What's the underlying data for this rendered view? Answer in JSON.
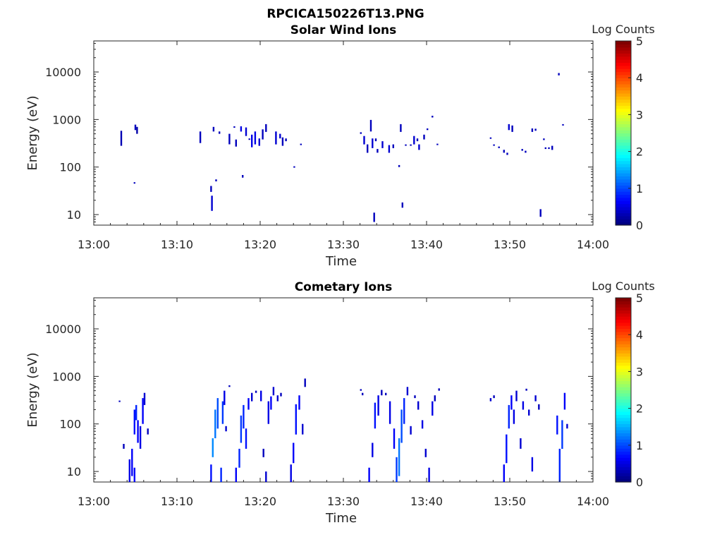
{
  "figure_title": "RPCICA150226T13.PNG",
  "chart_data": [
    {
      "type": "heatmap",
      "title": "Solar Wind Ions",
      "xlabel": "Time",
      "ylabel": "Energy (eV)",
      "yscale": "log",
      "ylim": [
        6,
        45000
      ],
      "xlim": [
        "13:00",
        "14:00"
      ],
      "xticks": [
        "13:00",
        "13:10",
        "13:20",
        "13:30",
        "13:40",
        "13:50",
        "14:00"
      ],
      "yticks": [
        "10",
        "100",
        "1000",
        "10000"
      ],
      "colorbar": {
        "label": "Log Counts",
        "range": [
          0,
          5
        ],
        "ticks": [
          "0",
          "1",
          "2",
          "3",
          "4",
          "5"
        ]
      },
      "cells": [
        [
          3.2,
          280,
          580,
          0.25
        ],
        [
          4.8,
          45,
          48,
          0.3
        ],
        [
          4.9,
          600,
          780,
          0.3
        ],
        [
          5.1,
          500,
          700,
          0.2
        ],
        [
          12.7,
          320,
          560,
          0.3
        ],
        [
          14.0,
          30,
          40,
          0.3
        ],
        [
          14.1,
          12,
          25,
          0.4
        ],
        [
          14.6,
          50,
          55,
          0.3
        ],
        [
          14.3,
          560,
          700,
          0.3
        ],
        [
          15.0,
          500,
          560,
          0.3
        ],
        [
          16.2,
          300,
          500,
          0.3
        ],
        [
          16.8,
          680,
          720,
          0.3
        ],
        [
          17.0,
          270,
          380,
          0.3
        ],
        [
          17.6,
          560,
          720,
          0.5
        ],
        [
          17.8,
          60,
          68,
          0.3
        ],
        [
          18.2,
          450,
          680,
          0.4
        ],
        [
          18.6,
          380,
          400,
          0.3
        ],
        [
          18.9,
          260,
          480,
          0.5
        ],
        [
          19.3,
          300,
          560,
          0.5
        ],
        [
          19.8,
          280,
          400,
          0.4
        ],
        [
          20.2,
          380,
          620,
          0.3
        ],
        [
          20.6,
          550,
          800,
          0.3
        ],
        [
          21.8,
          300,
          560,
          0.4
        ],
        [
          22.3,
          400,
          500,
          0.4
        ],
        [
          22.6,
          280,
          420,
          0.3
        ],
        [
          23.0,
          350,
          400,
          0.3
        ],
        [
          24.0,
          98,
          104,
          0.3
        ],
        [
          24.8,
          290,
          310,
          0.3
        ],
        [
          32.0,
          500,
          540,
          0.3
        ],
        [
          32.4,
          300,
          450,
          0.4
        ],
        [
          32.8,
          200,
          300,
          0.3
        ],
        [
          33.2,
          560,
          980,
          0.3
        ],
        [
          33.4,
          250,
          400,
          0.4
        ],
        [
          33.6,
          7,
          11,
          0.3
        ],
        [
          33.8,
          350,
          400,
          0.3
        ],
        [
          34.0,
          200,
          240,
          0.3
        ],
        [
          34.6,
          250,
          350,
          0.4
        ],
        [
          35.4,
          200,
          290,
          0.4
        ],
        [
          35.9,
          250,
          300,
          0.3
        ],
        [
          36.6,
          100,
          110,
          0.3
        ],
        [
          36.8,
          550,
          800,
          0.3
        ],
        [
          37.0,
          14,
          18,
          0.3
        ],
        [
          37.4,
          280,
          300,
          0.3
        ],
        [
          38.0,
          280,
          300,
          0.3
        ],
        [
          38.4,
          300,
          450,
          0.4
        ],
        [
          38.8,
          350,
          400,
          0.3
        ],
        [
          39.0,
          230,
          300,
          0.4
        ],
        [
          39.6,
          380,
          480,
          0.3
        ],
        [
          40.0,
          600,
          650,
          0.3
        ],
        [
          40.6,
          1100,
          1200,
          0.3
        ],
        [
          41.2,
          290,
          310,
          0.3
        ],
        [
          47.6,
          400,
          420,
          0.3
        ],
        [
          48.0,
          280,
          300,
          0.3
        ],
        [
          48.6,
          250,
          270,
          0.3
        ],
        [
          49.2,
          200,
          230,
          0.3
        ],
        [
          49.6,
          180,
          200,
          0.3
        ],
        [
          49.8,
          600,
          800,
          0.4
        ],
        [
          50.2,
          550,
          750,
          0.3
        ],
        [
          51.4,
          220,
          240,
          0.3
        ],
        [
          51.8,
          200,
          220,
          0.3
        ],
        [
          52.6,
          550,
          650,
          0.3
        ],
        [
          53.0,
          580,
          640,
          0.3
        ],
        [
          53.6,
          9,
          13,
          0.3
        ],
        [
          54.0,
          370,
          400,
          0.3
        ],
        [
          54.2,
          240,
          260,
          0.3
        ],
        [
          54.6,
          240,
          260,
          0.3
        ],
        [
          55.0,
          230,
          280,
          0.3
        ],
        [
          55.8,
          8500,
          9500,
          0.3
        ],
        [
          56.3,
          750,
          800,
          0.3
        ]
      ]
    },
    {
      "type": "heatmap",
      "title": "Cometary Ions",
      "xlabel": "Time",
      "ylabel": "Energy (eV)",
      "yscale": "log",
      "ylim": [
        6,
        45000
      ],
      "xlim": [
        "13:00",
        "14:00"
      ],
      "xticks": [
        "13:00",
        "13:10",
        "13:20",
        "13:30",
        "13:40",
        "13:50",
        "14:00"
      ],
      "yticks": [
        "10",
        "100",
        "1000",
        "10000"
      ],
      "colorbar": {
        "label": "Log Counts",
        "range": [
          0,
          5
        ],
        "ticks": [
          "0",
          "1",
          "2",
          "3",
          "4",
          "5"
        ]
      },
      "cells": [
        [
          3.0,
          290,
          310,
          0.3
        ],
        [
          3.5,
          30,
          38,
          0.3
        ],
        [
          4.2,
          6,
          18,
          0.5
        ],
        [
          4.5,
          8,
          30,
          0.6
        ],
        [
          4.8,
          60,
          200,
          0.7
        ],
        [
          5.0,
          120,
          250,
          0.8
        ],
        [
          5.2,
          40,
          120,
          0.6
        ],
        [
          5.5,
          30,
          90,
          0.5
        ],
        [
          5.8,
          100,
          350,
          0.6
        ],
        [
          6.0,
          250,
          450,
          0.4
        ],
        [
          6.4,
          60,
          80,
          0.3
        ],
        [
          4.8,
          6,
          12,
          0.6
        ],
        [
          14.0,
          6,
          14,
          0.7
        ],
        [
          14.2,
          20,
          50,
          1.3
        ],
        [
          14.5,
          50,
          200,
          1.2
        ],
        [
          14.8,
          80,
          350,
          1.0
        ],
        [
          15.2,
          6,
          12,
          0.8
        ],
        [
          15.4,
          100,
          300,
          0.9
        ],
        [
          15.6,
          250,
          500,
          0.5
        ],
        [
          15.8,
          70,
          90,
          0.4
        ],
        [
          16.2,
          600,
          650,
          0.3
        ],
        [
          17.0,
          6,
          12,
          0.6
        ],
        [
          17.4,
          12,
          30,
          0.8
        ],
        [
          17.6,
          40,
          150,
          0.9
        ],
        [
          17.9,
          80,
          250,
          0.8
        ],
        [
          18.2,
          30,
          80,
          0.7
        ],
        [
          18.5,
          200,
          350,
          0.6
        ],
        [
          18.9,
          300,
          450,
          0.4
        ],
        [
          19.4,
          450,
          500,
          0.3
        ],
        [
          20.0,
          300,
          500,
          0.5
        ],
        [
          20.3,
          20,
          30,
          0.3
        ],
        [
          20.6,
          6,
          10,
          0.4
        ],
        [
          20.9,
          100,
          300,
          0.5
        ],
        [
          21.2,
          200,
          380,
          0.6
        ],
        [
          21.5,
          400,
          600,
          0.4
        ],
        [
          22.0,
          300,
          400,
          0.4
        ],
        [
          22.4,
          380,
          450,
          0.3
        ],
        [
          23.6,
          6,
          14,
          0.5
        ],
        [
          23.9,
          15,
          40,
          0.6
        ],
        [
          24.2,
          60,
          260,
          0.7
        ],
        [
          24.6,
          200,
          400,
          0.6
        ],
        [
          25.0,
          60,
          100,
          0.4
        ],
        [
          25.3,
          600,
          900,
          0.3
        ],
        [
          32.0,
          500,
          540,
          0.3
        ],
        [
          32.2,
          400,
          450,
          0.3
        ],
        [
          33.0,
          6,
          12,
          0.6
        ],
        [
          33.4,
          20,
          40,
          0.5
        ],
        [
          33.7,
          80,
          280,
          0.7
        ],
        [
          34.1,
          150,
          400,
          0.5
        ],
        [
          34.5,
          400,
          520,
          0.3
        ],
        [
          35.0,
          400,
          450,
          0.3
        ],
        [
          35.5,
          100,
          300,
          0.5
        ],
        [
          36.0,
          30,
          80,
          0.6
        ],
        [
          36.3,
          6,
          20,
          0.9
        ],
        [
          36.6,
          8,
          50,
          1.2
        ],
        [
          36.9,
          40,
          200,
          1.0
        ],
        [
          37.2,
          100,
          350,
          0.8
        ],
        [
          37.6,
          400,
          600,
          0.4
        ],
        [
          38.0,
          60,
          90,
          0.4
        ],
        [
          38.5,
          350,
          400,
          0.3
        ],
        [
          38.9,
          200,
          300,
          0.4
        ],
        [
          39.4,
          80,
          120,
          0.5
        ],
        [
          39.8,
          20,
          30,
          0.4
        ],
        [
          40.2,
          6,
          12,
          0.5
        ],
        [
          40.6,
          150,
          300,
          0.5
        ],
        [
          40.9,
          300,
          400,
          0.3
        ],
        [
          41.4,
          500,
          560,
          0.3
        ],
        [
          47.6,
          300,
          350,
          0.4
        ],
        [
          48.0,
          350,
          400,
          0.3
        ],
        [
          49.2,
          6,
          14,
          0.6
        ],
        [
          49.5,
          15,
          60,
          0.7
        ],
        [
          49.8,
          80,
          250,
          0.8
        ],
        [
          50.1,
          200,
          400,
          0.6
        ],
        [
          50.4,
          100,
          200,
          0.5
        ],
        [
          50.7,
          300,
          500,
          0.4
        ],
        [
          51.2,
          30,
          50,
          0.4
        ],
        [
          51.5,
          200,
          300,
          0.5
        ],
        [
          51.9,
          500,
          550,
          0.3
        ],
        [
          52.2,
          150,
          200,
          0.4
        ],
        [
          52.6,
          10,
          20,
          0.5
        ],
        [
          53.0,
          300,
          400,
          0.4
        ],
        [
          53.4,
          200,
          260,
          0.3
        ],
        [
          55.6,
          60,
          150,
          0.7
        ],
        [
          55.9,
          6,
          30,
          0.8
        ],
        [
          56.2,
          30,
          120,
          0.9
        ],
        [
          56.5,
          200,
          450,
          0.6
        ],
        [
          56.8,
          80,
          100,
          0.4
        ]
      ]
    }
  ]
}
